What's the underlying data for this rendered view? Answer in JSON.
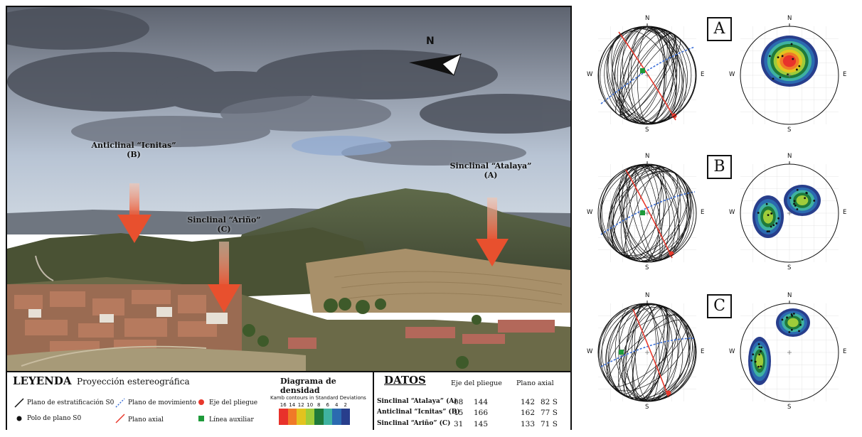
{
  "photo": {
    "north": "N",
    "labels": {
      "icnitas": {
        "line1": "Anticlinal “Icnitas”",
        "line2": "(B)"
      },
      "arino": {
        "line1": "Sinclinal “Ariño”",
        "line2": "(C)"
      },
      "atalaya": {
        "line1": "Sinclinal “Atalaya”",
        "line2": "(A)"
      }
    }
  },
  "legend": {
    "title": "LEYENDA",
    "subtitle": "Proyección estereográfica",
    "items": {
      "s0": "Plano de estratificación S0",
      "polo": "Polo de plano S0",
      "movimiento": "Plano de movimiento",
      "axial": "Plano axial",
      "eje": "Eje del pliegue",
      "auxiliar": "Línea auxiliar"
    },
    "colors": {
      "s0": "#111111",
      "movimiento": "#3b6fd8",
      "axial": "#e8382c",
      "eje": "#e8382c",
      "auxiliar": "#1e9a3a"
    },
    "density": {
      "title": "Diagrama de densidad",
      "kamb_title": "Kamb contours in Standard Deviations",
      "scale": [
        "16",
        "14",
        "12",
        "10",
        "8",
        "6",
        "4",
        "2"
      ],
      "colors": [
        "#e8322b",
        "#f07a28",
        "#e3c31f",
        "#9fcc3a",
        "#1f7a3a",
        "#3fb2a0",
        "#2b6ab0",
        "#283e8c"
      ]
    }
  },
  "datos": {
    "title": "DATOS",
    "col_eje": "Eje del pliegue",
    "col_plano": "Plano axial",
    "rows": [
      {
        "name": "Sinclinal “Atalaya” (A)",
        "eje_a": "08",
        "eje_b": "144",
        "plano_a": "142",
        "plano_b": "82 S"
      },
      {
        "name": "Anticlinal “Icnitas” (B)",
        "eje_a": "15",
        "eje_b": "166",
        "plano_a": "162",
        "plano_b": "77 S"
      },
      {
        "name": "Sinclinal “Ariño” (C)",
        "eje_a": "31",
        "eje_b": "145",
        "plano_a": "133",
        "plano_b": "71 S"
      }
    ]
  },
  "stereonets": {
    "directions": {
      "n": "N",
      "s": "S",
      "e": "E",
      "w": "W"
    },
    "panels": [
      {
        "letter": "A"
      },
      {
        "letter": "B"
      },
      {
        "letter": "C"
      }
    ]
  }
}
